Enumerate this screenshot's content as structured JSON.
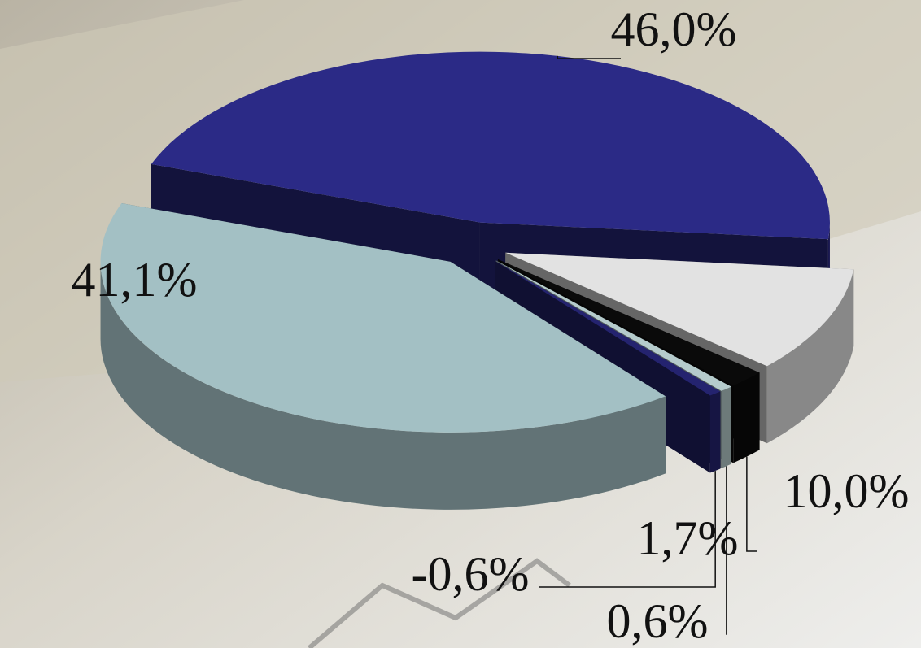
{
  "chart_data": {
    "type": "pie",
    "values": [
      46.0,
      10.0,
      1.7,
      0.6,
      -0.6,
      41.1
    ],
    "value_labels": [
      "46,0%",
      "10,0%",
      "1,7%",
      "0,6%",
      "-0,6%",
      "41,1%"
    ],
    "colors": [
      "#2b2a86",
      "#e2e2e2",
      "#0a0a0a",
      "#b5cbcc",
      "#24236f",
      "#a3c0c4"
    ]
  }
}
